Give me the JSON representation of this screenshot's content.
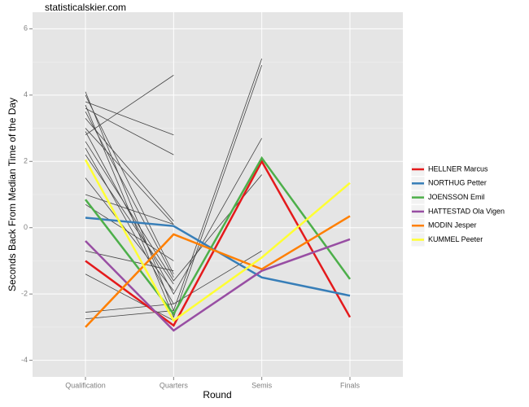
{
  "chart_data": {
    "type": "line",
    "title": "statisticalskier.com",
    "x_label": "Round",
    "y_label": "Seconds Back From Median Time of the Day",
    "categories": [
      "Qualification",
      "Quarters",
      "Semis",
      "Finals"
    ],
    "ylim": [
      -4.5,
      6.5
    ],
    "yticks": [
      -4,
      -2,
      0,
      2,
      4,
      6
    ],
    "grid": true,
    "legend": "right",
    "other_color": "#444444",
    "other_lines": [
      [
        4.1,
        -2.5,
        5.1,
        null
      ],
      [
        3.7,
        -2.7,
        4.9,
        null
      ],
      [
        2.9,
        -2.0,
        2.7,
        null
      ],
      [
        2.6,
        -1.6,
        1.6,
        null
      ],
      [
        -2.55,
        -2.3,
        -0.7,
        null
      ],
      [
        2.8,
        4.6,
        null,
        null
      ],
      [
        3.8,
        2.8,
        null,
        null
      ],
      [
        3.6,
        2.2,
        null,
        null
      ],
      [
        3.3,
        0.2,
        null,
        null
      ],
      [
        3.0,
        0.1,
        null,
        null
      ],
      [
        4.0,
        -1.4,
        null,
        null
      ],
      [
        3.5,
        -1.5,
        null,
        null
      ],
      [
        2.2,
        -1.7,
        null,
        null
      ],
      [
        1.5,
        -1.9,
        null,
        null
      ],
      [
        1.0,
        0.1,
        null,
        null
      ],
      [
        0.7,
        -1.0,
        null,
        null
      ],
      [
        -0.7,
        -1.3,
        null,
        null
      ],
      [
        -1.4,
        -2.8,
        null,
        null
      ],
      [
        -2.75,
        -2.5,
        null,
        null
      ],
      [
        2.4,
        -2.3,
        null,
        null
      ]
    ],
    "series": [
      {
        "name": "HELLNER Marcus",
        "color": "#e41a1c",
        "values": [
          -1.0,
          -2.95,
          2.0,
          -2.7
        ]
      },
      {
        "name": "NORTHUG Petter",
        "color": "#377eb8",
        "values": [
          0.3,
          0.05,
          -1.5,
          -2.05
        ]
      },
      {
        "name": "JOENSSON Emil",
        "color": "#4daf4a",
        "values": [
          0.85,
          -2.6,
          2.1,
          -1.55
        ]
      },
      {
        "name": "HATTESTAD Ola Vigen",
        "color": "#984ea3",
        "values": [
          -0.4,
          -3.1,
          -1.3,
          -0.35
        ]
      },
      {
        "name": "MODIN Jesper",
        "color": "#ff7f00",
        "values": [
          -3.0,
          -0.2,
          -1.25,
          0.35
        ]
      },
      {
        "name": "KUMMEL Peeter",
        "color": "#ffff33",
        "values": [
          2.05,
          -2.8,
          -0.9,
          1.35
        ]
      }
    ]
  }
}
